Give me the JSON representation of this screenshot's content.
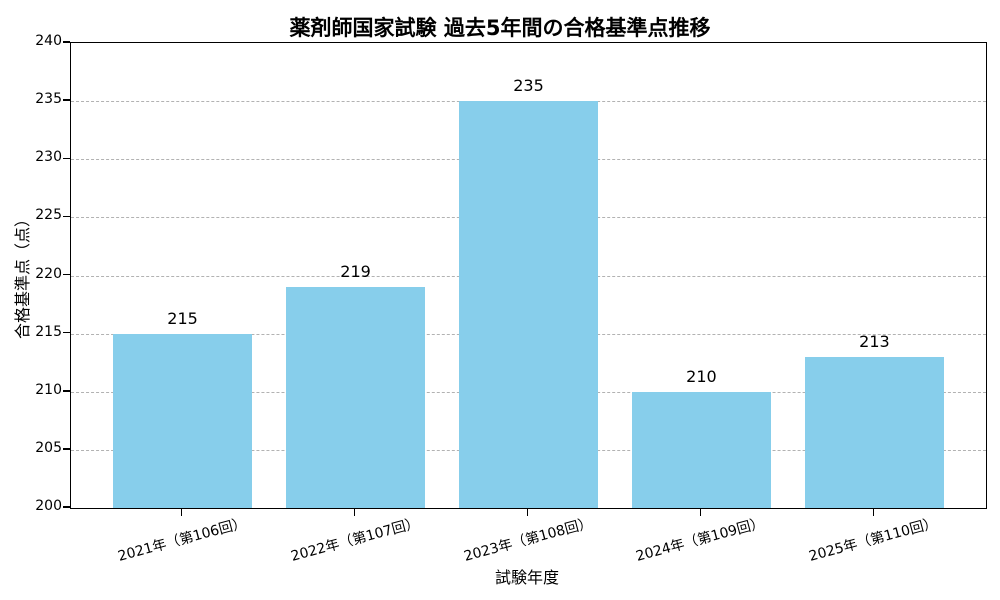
{
  "chart_data": {
    "type": "bar",
    "title": "薬剤師国家試験 過去5年間の合格基準点推移",
    "xlabel": "試験年度",
    "ylabel": "合格基準点（点）",
    "categories": [
      "2021年（第106回）",
      "2022年（第107回）",
      "2023年（第108回）",
      "2024年（第109回）",
      "2025年（第110回）"
    ],
    "values": [
      215,
      219,
      235,
      210,
      213
    ],
    "value_labels": [
      "215",
      "219",
      "235",
      "210",
      "213"
    ],
    "ylim": [
      200,
      240
    ],
    "ytick_step": 5,
    "yticks": [
      200,
      205,
      210,
      215,
      220,
      225,
      230,
      235,
      240
    ],
    "bar_color": "#87CEEB",
    "grid": "horizontal dashed",
    "grid_color": "#b2b2b2",
    "axis_color": "#000000",
    "legend": "none"
  }
}
